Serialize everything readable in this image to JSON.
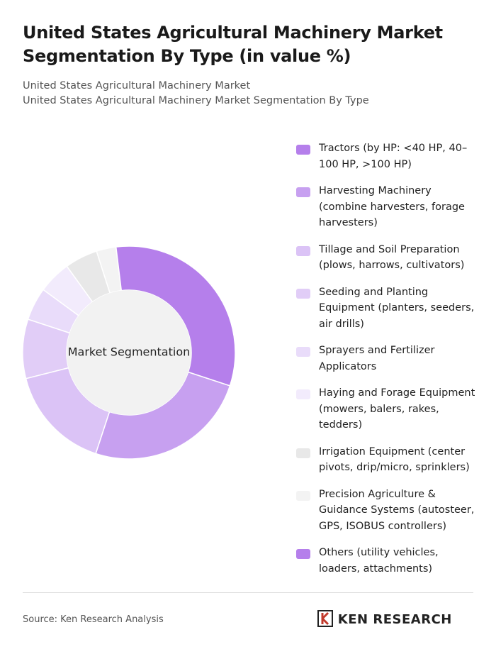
{
  "chart_data": {
    "type": "donut",
    "title": "United States Agricultural Machinery Market Segmentation By Type (in value %)",
    "subtitle": "United States Agricultural Machinery Market",
    "subtitle_2": "United States Agricultural Machinery Market Segmentation By Type",
    "center_label": "Market Segmentation",
    "categories": [
      "Tractors (by HP: <40 HP, 40–100 HP, >100 HP)",
      "Harvesting Machinery (combine harvesters, forage harvesters)",
      "Tillage and Soil Preparation (plows, harrows, cultivators)",
      "Seeding and Planting Equipment (planters, seeders, air drills)",
      "Sprayers and Fertilizer Applicators",
      "Haying and Forage Equipment (mowers, balers, rakes, tedders)",
      "Irrigation Equipment (center pivots, drip/micro, sprinklers)",
      "Precision Agriculture & Guidance Systems (autosteer, GPS, ISOBUS controllers)",
      "Others (utility vehicles, loaders, attachments)"
    ],
    "values": [
      32,
      25,
      16,
      9,
      5,
      5,
      5,
      3,
      0
    ],
    "colors": [
      "#b57feb",
      "#c7a0f0",
      "#dbc3f6",
      "#e1cdf7",
      "#e9dcfa",
      "#f2ebfc",
      "#e8e8e8",
      "#f3f3f3",
      "#b57feb"
    ],
    "legend": "right"
  },
  "source": "Source: Ken Research Analysis",
  "logo": "KEN RESEARCH"
}
